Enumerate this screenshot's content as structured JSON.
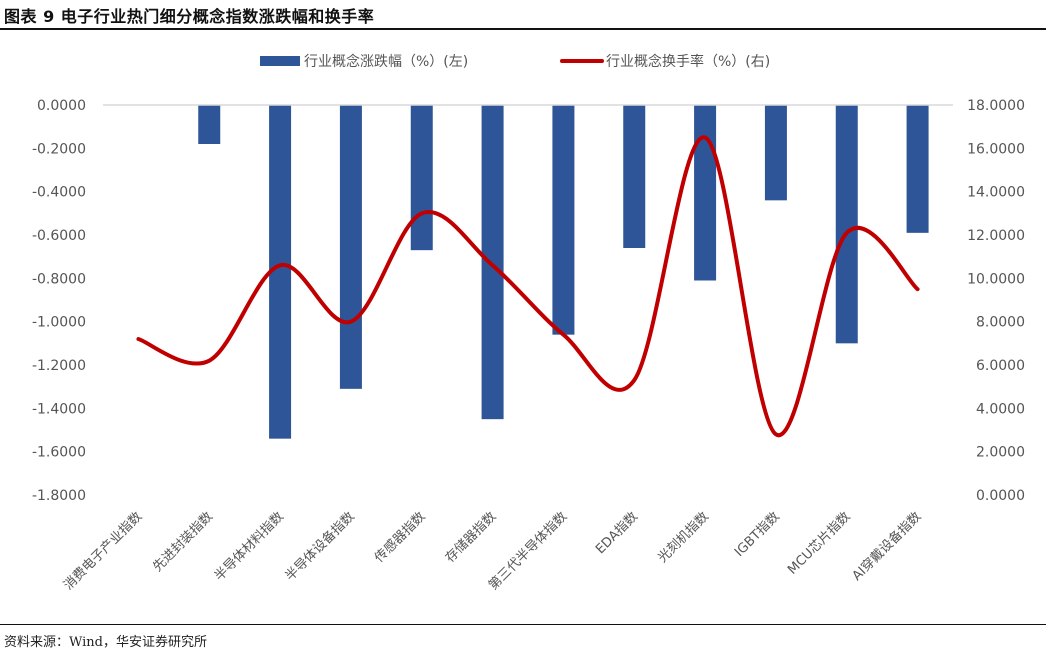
{
  "figure": {
    "title": "图表 9 电子行业热门细分概念指数涨跌幅和换手率",
    "source": "资料来源：Wind，华安证券研究所"
  },
  "chart_data": {
    "type": "bar",
    "categories": [
      "消费电子产业指数",
      "先进封装指数",
      "半导体材料指数",
      "半导体设备指数",
      "传感器指数",
      "存储器指数",
      "第三代半导体指数",
      "EDA指数",
      "光刻机指数",
      "IGBT指数",
      "MCU芯片指数",
      "AI穿戴设备指数"
    ],
    "series": [
      {
        "name": "行业概念涨跌幅（%）(左)",
        "type": "bar",
        "axis": "left",
        "color": "#2E5597",
        "values": [
          0.0,
          -0.18,
          -1.54,
          -1.31,
          -0.67,
          -1.45,
          -1.06,
          -0.66,
          -0.81,
          -0.44,
          -1.1,
          -0.59
        ]
      },
      {
        "name": "行业概念换手率（%）(右)",
        "type": "line",
        "axis": "right",
        "color": "#C00000",
        "smooth": true,
        "values": [
          7.2,
          6.2,
          10.6,
          8.0,
          13.0,
          10.6,
          7.4,
          5.3,
          16.5,
          2.8,
          12.1,
          9.5
        ]
      }
    ],
    "y_left": {
      "min": -1.8,
      "max": 0.0,
      "step": 0.2,
      "decimals": 4
    },
    "y_right": {
      "min": 0.0,
      "max": 18.0,
      "step": 2.0,
      "decimals": 4
    },
    "legend": "top",
    "grid": false
  }
}
